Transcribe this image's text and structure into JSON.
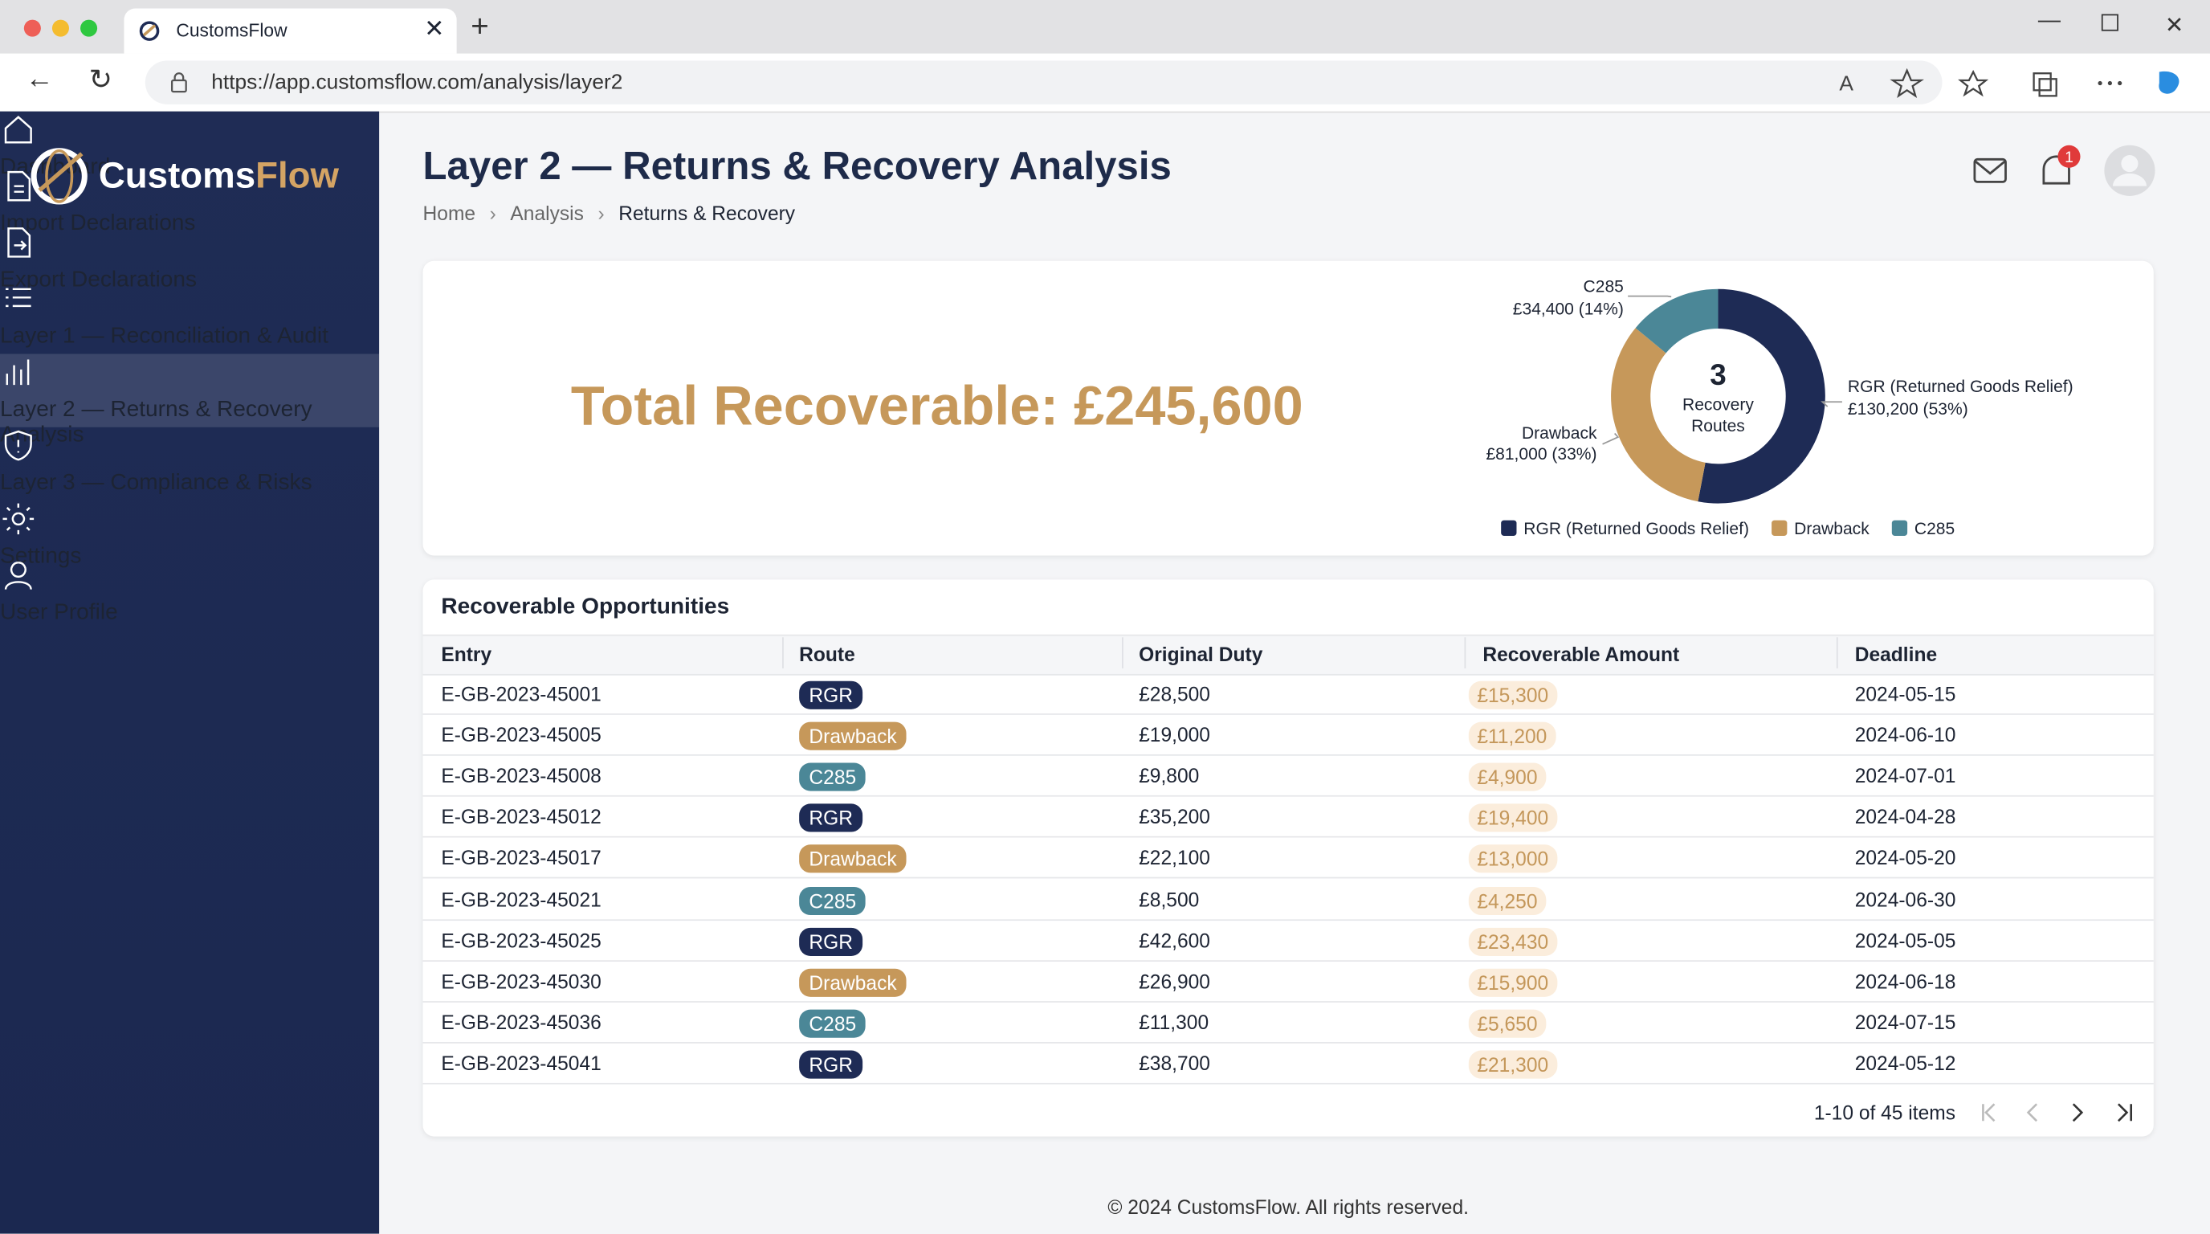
{
  "browser": {
    "tab_title": "CustomsFlow",
    "url": "https://app.customsflow.com/analysis/layer2"
  },
  "sidebar": {
    "brand": [
      "Customs",
      "Flow"
    ],
    "nav": [
      "Dashboard",
      "Import Declarations",
      "Export Declarations",
      "Layer 1 — Reconciliation & Audit",
      "Layer 2 — Returns & Recovery Analysis",
      "Layer 3 — Compliance & Risks",
      "Settings",
      "User Profile"
    ],
    "active": 4
  },
  "header": {
    "title": "Layer 2 — Returns & Recovery Analysis",
    "breadcrumbs": [
      "Home",
      "Analysis",
      "Returns & Recovery"
    ],
    "notifications": 1
  },
  "summary": {
    "total": "Total Recoverable: £245,600"
  },
  "chart_data": {
    "type": "pie",
    "donut": true,
    "categories": [
      "RGR (Returned Goods Relief)",
      "Drawback",
      "C285"
    ],
    "values": [
      130200,
      81000,
      34400
    ],
    "value_labels": [
      "£130,200 (53%)",
      "£81,000 (33%)",
      "£34,400 (14%)"
    ],
    "colors": [
      "#1e2b55",
      "#c6985a",
      "#4b8797"
    ],
    "center_value": 3,
    "center_label": "Recovery Routes"
  },
  "table": {
    "title": "Recoverable Opportunities",
    "columns": [
      "Entry",
      "Route",
      "Original Duty",
      "Recoverable Amount",
      "Deadline"
    ],
    "route_colors": {
      "RGR": "#1e2b55",
      "Drawback": "#c6985a",
      "C285": "#4b8797"
    },
    "rows": [
      [
        "E-GB-2023-45001",
        "RGR",
        "£28,500",
        "£15,300",
        "2024-05-15"
      ],
      [
        "E-GB-2023-45005",
        "Drawback",
        "£19,000",
        "£11,200",
        "2024-06-10"
      ],
      [
        "E-GB-2023-45008",
        "C285",
        "£9,800",
        "£4,900",
        "2024-07-01"
      ],
      [
        "E-GB-2023-45012",
        "RGR",
        "£35,200",
        "£19,400",
        "2024-04-28"
      ],
      [
        "E-GB-2023-45017",
        "Drawback",
        "£22,100",
        "£13,000",
        "2024-05-20"
      ],
      [
        "E-GB-2023-45021",
        "C285",
        "£8,500",
        "£4,250",
        "2024-06-30"
      ],
      [
        "E-GB-2023-45025",
        "RGR",
        "£42,600",
        "£23,430",
        "2024-05-05"
      ],
      [
        "E-GB-2023-45030",
        "Drawback",
        "£26,900",
        "£15,900",
        "2024-06-18"
      ],
      [
        "E-GB-2023-45036",
        "C285",
        "£11,300",
        "£5,650",
        "2024-07-15"
      ],
      [
        "E-GB-2023-45041",
        "RGR",
        "£38,700",
        "£21,300",
        "2024-05-12"
      ]
    ],
    "pagination": "1-10 of 45 items"
  },
  "footer": "© 2024 CustomsFlow. All rights reserved."
}
